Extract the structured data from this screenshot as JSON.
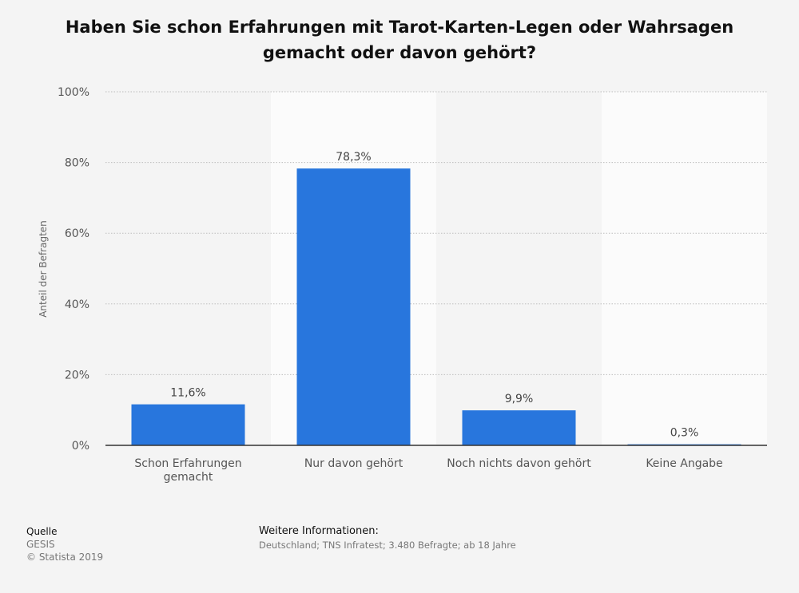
{
  "chart_data": {
    "type": "bar",
    "title": [
      "Haben Sie schon Erfahrungen mit Tarot-Karten-Legen oder Wahrsagen",
      "gemacht oder davon gehört?"
    ],
    "ylabel": "Anteil der Befragten",
    "xlabel": "",
    "categories": [
      [
        "Schon Erfahrungen",
        "gemacht"
      ],
      [
        "Nur davon gehört"
      ],
      [
        "Noch nichts davon gehört"
      ],
      [
        "Keine Angabe"
      ]
    ],
    "values": [
      11.6,
      78.3,
      9.9,
      0.3
    ],
    "value_labels": [
      "11,6%",
      "78,3%",
      "9,9%",
      "0,3%"
    ],
    "ylim": [
      0,
      100
    ],
    "yticks": [
      0,
      20,
      40,
      60,
      80,
      100
    ],
    "ytick_labels": [
      "0%",
      "20%",
      "40%",
      "60%",
      "80%",
      "100%"
    ],
    "grid": true,
    "legend": "none",
    "bar_color": "#2876dd"
  },
  "footer": {
    "source_heading": "Quelle",
    "source_lines": [
      "GESIS",
      "© Statista 2019"
    ],
    "info_heading": "Weitere Informationen:",
    "info_text": "Deutschland; TNS Infratest; 3.480 Befragte; ab 18 Jahre"
  }
}
